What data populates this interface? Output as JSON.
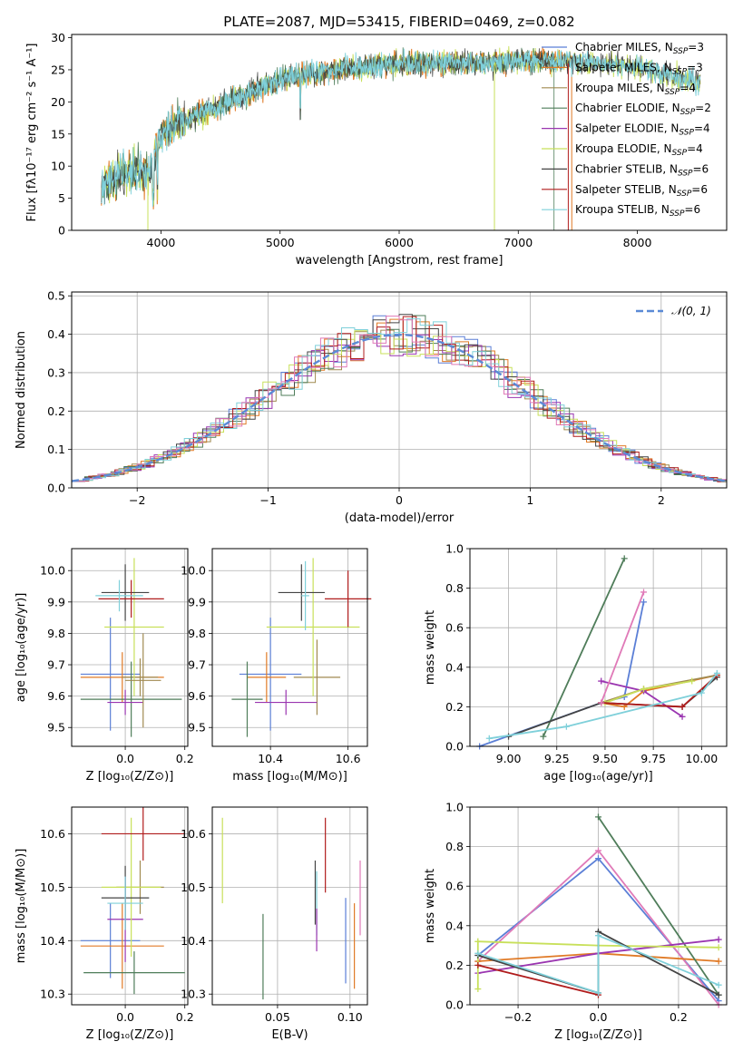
{
  "title": "PLATE=2087, MJD=53415, FIBERID=0469, z=0.082",
  "colors": {
    "chab_miles": "#5b7fd6",
    "salp_miles": "#e07a26",
    "krou_miles": "#a08a50",
    "chab_elodie": "#4f7d5a",
    "salp_elodie": "#9a35b0",
    "krou_elodie": "#c8e05a",
    "chab_stelib": "#444444",
    "salp_stelib": "#b01c1c",
    "krou_stelib": "#7fd0da",
    "normal": "#5b8ad6"
  },
  "chart_data": [
    {
      "id": "spectrum",
      "type": "line",
      "xlabel": "wavelength [Angstrom, rest frame]",
      "ylabel": "Flux [fλ10⁻¹⁷ erg cm⁻² s⁻¹ A⁻¹]",
      "xlim": [
        3250,
        8750
      ],
      "ylim": [
        0,
        30.5
      ],
      "xticks": [
        "4000",
        "5000",
        "6000",
        "7000",
        "8000"
      ],
      "yticks": [
        "0",
        "5",
        "10",
        "15",
        "20",
        "25",
        "30"
      ],
      "grid": false,
      "legend_position": "right",
      "legend": [
        {
          "name": "Chabrier MILES, N",
          "sub": "SSP",
          "tail": "=3",
          "color": "chab_miles"
        },
        {
          "name": "Salpeter MILES, N",
          "sub": "SSP",
          "tail": "=3",
          "color": "salp_miles"
        },
        {
          "name": "Kroupa MILES, N",
          "sub": "SSP",
          "tail": "=4",
          "color": "krou_miles"
        },
        {
          "name": "Chabrier ELODIE, N",
          "sub": "SSP",
          "tail": "=2",
          "color": "chab_elodie"
        },
        {
          "name": "Salpeter ELODIE, N",
          "sub": "SSP",
          "tail": "=4",
          "color": "salp_elodie"
        },
        {
          "name": "Kroupa ELODIE, N",
          "sub": "SSP",
          "tail": "=4",
          "color": "krou_elodie"
        },
        {
          "name": "Chabrier STELIB, N",
          "sub": "SSP",
          "tail": "=6",
          "color": "chab_stelib"
        },
        {
          "name": "Salpeter STELIB, N",
          "sub": "SSP",
          "tail": "=6",
          "color": "salp_stelib"
        },
        {
          "name": "Kroupa STELIB, N",
          "sub": "SSP",
          "tail": "=6",
          "color": "krou_stelib"
        }
      ],
      "continuum": [
        [
          3500,
          7
        ],
        [
          3700,
          9
        ],
        [
          3900,
          9
        ],
        [
          4000,
          15
        ],
        [
          4300,
          18
        ],
        [
          4700,
          21
        ],
        [
          5000,
          23.5
        ],
        [
          5500,
          25
        ],
        [
          6000,
          26
        ],
        [
          6500,
          26
        ],
        [
          7000,
          26.3
        ],
        [
          7500,
          26.2
        ],
        [
          8000,
          25.5
        ],
        [
          8500,
          23
        ]
      ]
    },
    {
      "id": "residuals",
      "type": "histogram",
      "xlabel": "(data-model)/error",
      "ylabel": "Normed distribution",
      "xlim": [
        -2.5,
        2.5
      ],
      "ylim": [
        0,
        0.51
      ],
      "xticks": [
        "−2",
        "−1",
        "0",
        "1",
        "2"
      ],
      "yticks": [
        "0.0",
        "0.1",
        "0.2",
        "0.3",
        "0.4",
        "0.5"
      ],
      "grid": true,
      "legend_position": "top-right",
      "legend": [
        {
          "name": "𝒩(0, 1)",
          "color": "normal",
          "style": "dashed"
        }
      ],
      "bin_width": 0.1
    },
    {
      "id": "age_vs_Z",
      "type": "errorbar",
      "xlabel": "Z [log₁₀(Z/Z⊙)]",
      "ylabel": "age  [log₁₀(age/yr)]",
      "xlim": [
        -0.18,
        0.21
      ],
      "ylim": [
        9.44,
        10.07
      ],
      "xticks": [
        {
          "v": 0.0,
          "t": "0.0"
        },
        {
          "v": 0.2,
          "t": "0.2"
        }
      ],
      "yticks": [
        {
          "v": 9.5,
          "t": "9.5"
        },
        {
          "v": 9.6,
          "t": "9.6"
        },
        {
          "v": 9.7,
          "t": "9.7"
        },
        {
          "v": 9.8,
          "t": "9.8"
        },
        {
          "v": 9.9,
          "t": "9.9"
        },
        {
          "v": 10.0,
          "t": "10.0"
        }
      ],
      "grid": true,
      "points": [
        {
          "c": "chab_miles",
          "x": -0.05,
          "xe": 0.1,
          "y": 9.67,
          "ye": 0.18
        },
        {
          "c": "salp_miles",
          "x": -0.01,
          "xe": 0.14,
          "y": 9.66,
          "ye": 0.08
        },
        {
          "c": "krou_miles",
          "x": 0.05,
          "xe": 0.06,
          "y": 9.66,
          "ye": 0.06
        },
        {
          "c": "chab_elodie",
          "x": 0.02,
          "xe": 0.17,
          "y": 9.59,
          "ye": 0.12
        },
        {
          "c": "salp_elodie",
          "x": 0.0,
          "xe": 0.06,
          "y": 9.58,
          "ye": 0.04
        },
        {
          "c": "krou_elodie",
          "x": 0.03,
          "xe": 0.1,
          "y": 9.82,
          "ye": 0.22
        },
        {
          "c": "chab_stelib",
          "x": 0.0,
          "xe": 0.08,
          "y": 9.93,
          "ye": 0.09
        },
        {
          "c": "salp_stelib",
          "x": 0.02,
          "xe": 0.11,
          "y": 9.91,
          "ye": 0.06
        },
        {
          "c": "krou_stelib",
          "x": -0.02,
          "xe": 0.08,
          "y": 9.92,
          "ye": 0.05
        },
        {
          "c": "krou_miles",
          "x": 0.06,
          "xe": 0.06,
          "y": 9.65,
          "ye": 0.15
        }
      ]
    },
    {
      "id": "age_vs_mass",
      "type": "errorbar",
      "xlabel": "mass [log₁₀(M/M⊙)]",
      "ylabel": "",
      "xlim": [
        10.25,
        10.65
      ],
      "ylim": [
        9.44,
        10.07
      ],
      "xticks": [
        {
          "v": 10.4,
          "t": "10.4"
        },
        {
          "v": 10.6,
          "t": "10.6"
        }
      ],
      "yticks": [
        {
          "v": 9.5,
          "t": "9.5"
        },
        {
          "v": 9.6,
          "t": "9.6"
        },
        {
          "v": 9.7,
          "t": "9.7"
        },
        {
          "v": 9.8,
          "t": "9.8"
        },
        {
          "v": 9.9,
          "t": "9.9"
        },
        {
          "v": 10.0,
          "t": "10.0"
        }
      ],
      "grid": true,
      "points": [
        {
          "c": "chab_miles",
          "x": 10.4,
          "xe": 0.08,
          "y": 9.67,
          "ye": 0.18
        },
        {
          "c": "salp_miles",
          "x": 10.39,
          "xe": 0.05,
          "y": 9.66,
          "ye": 0.08
        },
        {
          "c": "krou_miles",
          "x": 10.52,
          "xe": 0.06,
          "y": 9.66,
          "ye": 0.12
        },
        {
          "c": "chab_elodie",
          "x": 10.34,
          "xe": 0.04,
          "y": 9.59,
          "ye": 0.12
        },
        {
          "c": "salp_elodie",
          "x": 10.44,
          "xe": 0.08,
          "y": 9.58,
          "ye": 0.04
        },
        {
          "c": "krou_elodie",
          "x": 10.51,
          "xe": 0.12,
          "y": 9.82,
          "ye": 0.22
        },
        {
          "c": "chab_stelib",
          "x": 10.48,
          "xe": 0.06,
          "y": 9.93,
          "ye": 0.09
        },
        {
          "c": "salp_stelib",
          "x": 10.6,
          "xe": 0.06,
          "y": 9.91,
          "ye": 0.09
        },
        {
          "c": "krou_stelib",
          "x": 10.49,
          "xe": 0.01,
          "y": 9.92,
          "ye": 0.11
        }
      ]
    },
    {
      "id": "weight_vs_age",
      "type": "line",
      "xlabel": "age  [log₁₀(age/yr)]",
      "ylabel": "mass weight",
      "xlim": [
        8.8,
        10.13
      ],
      "ylim": [
        0,
        1.0
      ],
      "xticks": [
        {
          "v": 9.0,
          "t": "9.00"
        },
        {
          "v": 9.25,
          "t": "9.25"
        },
        {
          "v": 9.5,
          "t": "9.50"
        },
        {
          "v": 9.75,
          "t": "9.75"
        },
        {
          "v": 10.0,
          "t": "10.00"
        }
      ],
      "yticks": [
        {
          "v": 0,
          "t": "0.0"
        },
        {
          "v": 0.2,
          "t": "0.2"
        },
        {
          "v": 0.4,
          "t": "0.4"
        },
        {
          "v": 0.6,
          "t": "0.6"
        },
        {
          "v": 0.8,
          "t": "0.8"
        },
        {
          "v": 1.0,
          "t": "1.0"
        }
      ],
      "grid": true,
      "series": [
        {
          "c": "chab_miles",
          "pts": [
            [
              8.85,
              0.0
            ],
            [
              9.48,
              0.22
            ],
            [
              9.6,
              0.25
            ],
            [
              9.7,
              0.73
            ]
          ]
        },
        {
          "c": "salp_miles",
          "pts": [
            [
              9.48,
              0.22
            ],
            [
              9.6,
              0.2
            ],
            [
              9.7,
              0.28
            ],
            [
              10.08,
              0.36
            ]
          ]
        },
        {
          "c": "krou_miles",
          "pts": [
            [
              9.48,
              0.22
            ],
            [
              9.7,
              0.29
            ],
            [
              10.08,
              0.36
            ]
          ]
        },
        {
          "c": "chab_elodie",
          "pts": [
            [
              9.18,
              0.05
            ],
            [
              9.6,
              0.95
            ]
          ]
        },
        {
          "c": "salp_elodie",
          "pts": [
            [
              9.48,
              0.33
            ],
            [
              9.7,
              0.28
            ],
            [
              9.9,
              0.15
            ]
          ]
        },
        {
          "c": "krou_elodie",
          "pts": [
            [
              9.5,
              0.22
            ],
            [
              9.7,
              0.29
            ],
            [
              9.95,
              0.33
            ]
          ]
        },
        {
          "c": "chab_stelib",
          "pts": [
            [
              9.0,
              0.05
            ],
            [
              9.48,
              0.22
            ],
            [
              9.9,
              0.2
            ],
            [
              10.08,
              0.35
            ]
          ]
        },
        {
          "c": "salp_stelib",
          "pts": [
            [
              9.48,
              0.22
            ],
            [
              9.9,
              0.2
            ],
            [
              10.08,
              0.36
            ]
          ]
        },
        {
          "c": "krou_stelib",
          "pts": [
            [
              8.9,
              0.04
            ],
            [
              9.3,
              0.1
            ],
            [
              10.0,
              0.27
            ],
            [
              10.08,
              0.37
            ]
          ]
        },
        {
          "c": "salp_stelib",
          "pts": [
            [
              9.48,
              0.22
            ],
            [
              9.7,
              0.78
            ]
          ],
          "alt": "#e07ab8"
        }
      ]
    },
    {
      "id": "mass_vs_Z",
      "type": "errorbar",
      "xlabel": "Z [log₁₀(Z/Z⊙)]",
      "ylabel": "mass [log₁₀(M/M⊙)]",
      "xlim": [
        -0.18,
        0.21
      ],
      "ylim": [
        10.28,
        10.65
      ],
      "xticks": [
        {
          "v": 0.0,
          "t": "0.0"
        },
        {
          "v": 0.2,
          "t": "0.2"
        }
      ],
      "yticks": [
        {
          "v": 10.3,
          "t": "10.3"
        },
        {
          "v": 10.4,
          "t": "10.4"
        },
        {
          "v": 10.5,
          "t": "10.5"
        },
        {
          "v": 10.6,
          "t": "10.6"
        }
      ],
      "grid": true,
      "points": [
        {
          "c": "chab_miles",
          "x": -0.05,
          "xe": 0.1,
          "y": 10.4,
          "ye": 0.07
        },
        {
          "c": "salp_miles",
          "x": -0.01,
          "xe": 0.14,
          "y": 10.39,
          "ye": 0.08
        },
        {
          "c": "krou_miles",
          "x": 0.05,
          "xe": 0.08,
          "y": 10.5,
          "ye": 0.05
        },
        {
          "c": "chab_elodie",
          "x": 0.03,
          "xe": 0.17,
          "y": 10.34,
          "ye": 0.04
        },
        {
          "c": "salp_elodie",
          "x": 0.0,
          "xe": 0.06,
          "y": 10.44,
          "ye": 0.08
        },
        {
          "c": "krou_elodie",
          "x": 0.02,
          "xe": 0.1,
          "y": 10.5,
          "ye": 0.13
        },
        {
          "c": "chab_stelib",
          "x": 0.0,
          "xe": 0.08,
          "y": 10.48,
          "ye": 0.06
        },
        {
          "c": "salp_stelib",
          "x": 0.06,
          "xe": 0.14,
          "y": 10.6,
          "ye": 0.05
        },
        {
          "c": "krou_stelib",
          "x": 0.0,
          "xe": 0.06,
          "y": 10.47,
          "ye": 0.05
        }
      ]
    },
    {
      "id": "mass_vs_EBV",
      "type": "errorbar",
      "xlabel": "E(B-V)",
      "ylabel": "",
      "xlim": [
        0.005,
        0.112
      ],
      "ylim": [
        10.28,
        10.65
      ],
      "xticks": [
        {
          "v": 0.05,
          "t": "0.05"
        },
        {
          "v": 0.1,
          "t": "0.10"
        }
      ],
      "yticks": [
        {
          "v": 10.3,
          "t": "10.3"
        },
        {
          "v": 10.4,
          "t": "10.4"
        },
        {
          "v": 10.5,
          "t": "10.5"
        },
        {
          "v": 10.6,
          "t": "10.6"
        }
      ],
      "grid": true,
      "points": [
        {
          "c": "krou_elodie",
          "x": 0.012,
          "xe": 0,
          "y": 10.55,
          "ye": 0.08
        },
        {
          "c": "chab_elodie",
          "x": 0.04,
          "xe": 0,
          "y": 10.37,
          "ye": 0.08
        },
        {
          "c": "chab_stelib",
          "x": 0.076,
          "xe": 0,
          "y": 10.49,
          "ye": 0.06
        },
        {
          "c": "krou_stelib",
          "x": 0.077,
          "xe": 0,
          "y": 10.47,
          "ye": 0.06
        },
        {
          "c": "salp_elodie",
          "x": 0.077,
          "xe": 0,
          "y": 10.42,
          "ye": 0.04
        },
        {
          "c": "salp_stelib",
          "x": 0.083,
          "xe": 0,
          "y": 10.56,
          "ye": 0.07
        },
        {
          "c": "chab_miles",
          "x": 0.097,
          "xe": 0,
          "y": 10.4,
          "ye": 0.08
        },
        {
          "c": "salp_miles",
          "x": 0.103,
          "xe": 0,
          "y": 10.39,
          "ye": 0.08
        },
        {
          "c": "#e07ab8",
          "x": 0.107,
          "xe": 0,
          "y": 10.48,
          "ye": 0.07
        }
      ]
    },
    {
      "id": "weight_vs_Z",
      "type": "line",
      "xlabel": "Z [log₁₀(Z/Z⊙)]",
      "ylabel": "mass weight",
      "xlim": [
        -0.32,
        0.32
      ],
      "ylim": [
        0,
        1.0
      ],
      "xticks": [
        {
          "v": -0.2,
          "t": "−0.2"
        },
        {
          "v": 0.0,
          "t": "0.0"
        },
        {
          "v": 0.2,
          "t": "0.2"
        }
      ],
      "yticks": [
        {
          "v": 0,
          "t": "0.0"
        },
        {
          "v": 0.2,
          "t": "0.2"
        },
        {
          "v": 0.4,
          "t": "0.4"
        },
        {
          "v": 0.6,
          "t": "0.6"
        },
        {
          "v": 0.8,
          "t": "0.8"
        },
        {
          "v": 1.0,
          "t": "1.0"
        }
      ],
      "grid": true,
      "series": [
        {
          "c": "chab_miles",
          "pts": [
            [
              -0.3,
              0.25
            ],
            [
              0.0,
              0.74
            ],
            [
              0.3,
              0.02
            ]
          ]
        },
        {
          "c": "#e07ab8",
          "pts": [
            [
              -0.3,
              0.22
            ],
            [
              0.0,
              0.78
            ],
            [
              0.3,
              0.0
            ]
          ]
        },
        {
          "c": "salp_miles",
          "pts": [
            [
              -0.3,
              0.22
            ],
            [
              0.0,
              0.26
            ],
            [
              0.3,
              0.22
            ]
          ]
        },
        {
          "c": "chab_elodie",
          "pts": [
            [
              0.0,
              0.95
            ],
            [
              0.3,
              0.05
            ]
          ]
        },
        {
          "c": "salp_elodie",
          "pts": [
            [
              -0.3,
              0.16
            ],
            [
              0.0,
              0.26
            ],
            [
              0.3,
              0.33
            ]
          ]
        },
        {
          "c": "krou_elodie",
          "pts": [
            [
              -0.3,
              0.32
            ],
            [
              0.0,
              0.3
            ],
            [
              0.3,
              0.29
            ]
          ]
        },
        {
          "c": "krou_elodie",
          "pts": [
            [
              -0.3,
              0.08
            ],
            [
              -0.3,
              0.32
            ]
          ]
        },
        {
          "c": "chab_stelib",
          "pts": [
            [
              -0.3,
              0.25
            ],
            [
              0.0,
              0.06
            ],
            [
              0.0,
              0.37
            ],
            [
              0.3,
              0.05
            ]
          ]
        },
        {
          "c": "salp_stelib",
          "pts": [
            [
              -0.3,
              0.2
            ],
            [
              0.0,
              0.05
            ]
          ]
        },
        {
          "c": "krou_stelib",
          "pts": [
            [
              -0.3,
              0.26
            ],
            [
              0.0,
              0.06
            ],
            [
              0.0,
              0.35
            ],
            [
              0.3,
              0.1
            ]
          ]
        }
      ]
    }
  ]
}
